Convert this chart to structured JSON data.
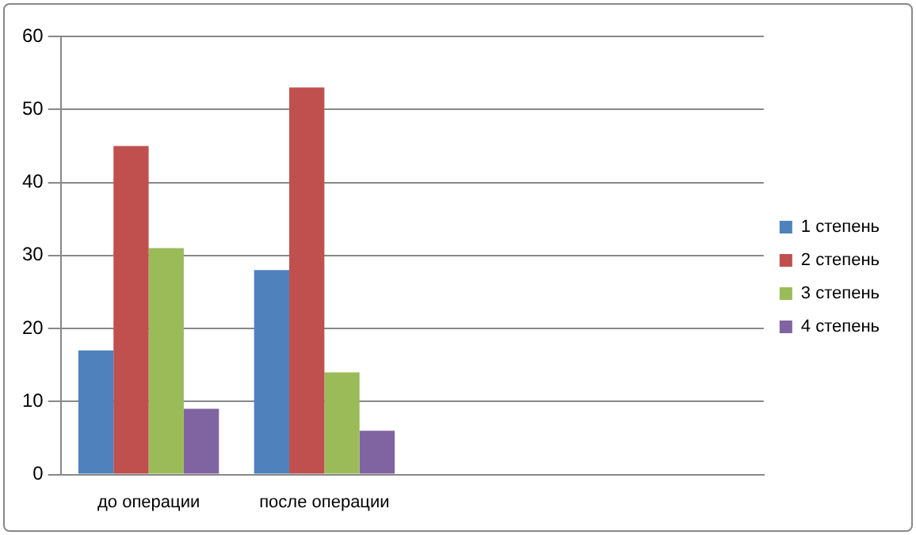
{
  "chart_data": {
    "type": "bar",
    "categories": [
      "до операции",
      "после операции",
      null,
      null
    ],
    "series": [
      {
        "name": "1 степень",
        "color": "#4f81bd",
        "values": [
          17,
          28,
          null,
          null
        ]
      },
      {
        "name": "2 степень",
        "color": "#c0504d",
        "values": [
          45,
          53,
          null,
          null
        ]
      },
      {
        "name": "3 степень",
        "color": "#9bbb59",
        "values": [
          31,
          14,
          null,
          null
        ]
      },
      {
        "name": "4 степень",
        "color": "#8064a2",
        "values": [
          9,
          6,
          null,
          null
        ]
      }
    ],
    "ylim": [
      0,
      60
    ],
    "yticks": [
      0,
      10,
      20,
      30,
      40,
      50,
      60
    ],
    "grid": "y",
    "legend": "right"
  }
}
